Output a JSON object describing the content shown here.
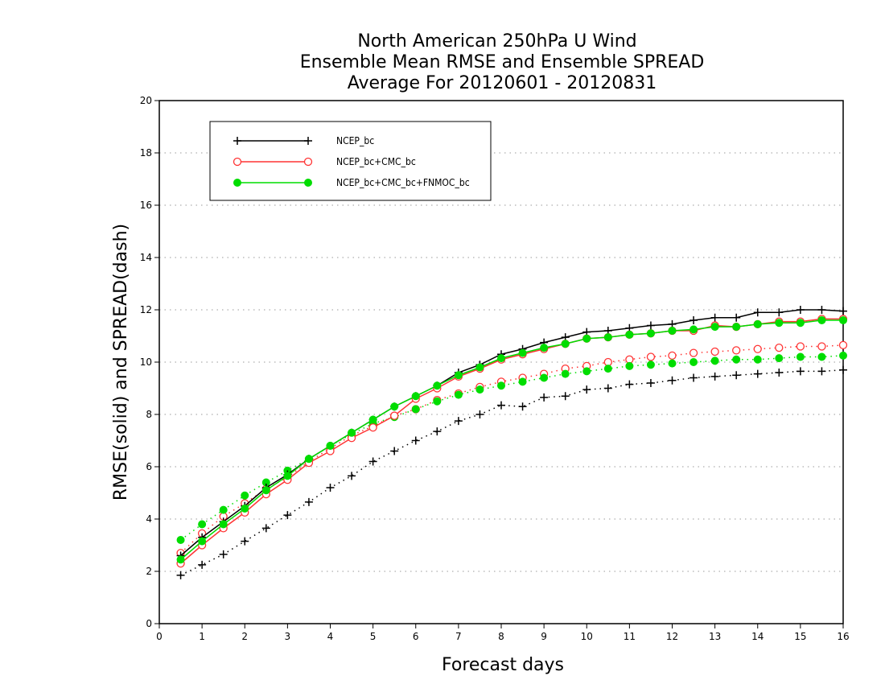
{
  "chart_data": {
    "type": "line",
    "title": [
      "North American 250hPa U Wind",
      "Ensemble Mean RMSE and Ensemble SPREAD",
      "Average For 20120601 - 20120831"
    ],
    "xlabel": "Forecast days",
    "ylabel": "RMSE(solid) and SPREAD(dash)",
    "xlim": [
      0,
      16
    ],
    "ylim": [
      0,
      20
    ],
    "x_ticks": [
      "0",
      "1",
      "2",
      "3",
      "4",
      "5",
      "6",
      "7",
      "8",
      "9",
      "10",
      "11",
      "12",
      "13",
      "14",
      "15",
      "16"
    ],
    "y_ticks": [
      "0",
      "2",
      "4",
      "6",
      "8",
      "10",
      "12",
      "14",
      "16",
      "18",
      "20"
    ],
    "grid": "horizontal dotted",
    "legend_position": "top-left",
    "x": [
      0.5,
      1,
      1.5,
      2,
      2.5,
      3,
      3.5,
      4,
      4.5,
      5,
      5.5,
      6,
      6.5,
      7,
      7.5,
      8,
      8.5,
      9,
      9.5,
      10,
      10.5,
      11,
      11.5,
      12,
      12.5,
      13,
      13.5,
      14,
      14.5,
      15,
      15.5,
      16
    ],
    "series": [
      {
        "name": "NCEP_bc",
        "color": "#000000",
        "marker": "plus",
        "rmse": [
          2.6,
          3.3,
          3.9,
          4.5,
          5.2,
          5.7,
          6.3,
          6.8,
          7.3,
          7.8,
          8.3,
          8.7,
          9.1,
          9.6,
          9.9,
          10.3,
          10.5,
          10.75,
          10.95,
          11.15,
          11.2,
          11.3,
          11.4,
          11.45,
          11.6,
          11.7,
          11.7,
          11.9,
          11.9,
          12.0,
          12.0,
          11.95
        ],
        "spread": [
          1.85,
          2.25,
          2.65,
          3.15,
          3.65,
          4.15,
          4.65,
          5.2,
          5.65,
          6.2,
          6.6,
          7.0,
          7.35,
          7.75,
          8.0,
          8.35,
          8.3,
          8.65,
          8.7,
          8.95,
          9.0,
          9.15,
          9.2,
          9.3,
          9.4,
          9.45,
          9.5,
          9.55,
          9.6,
          9.65,
          9.65,
          9.7
        ]
      },
      {
        "name": "NCEP_bc+CMC_bc",
        "color": "#ff3333",
        "marker": "open-circle",
        "rmse": [
          2.3,
          3.0,
          3.65,
          4.25,
          4.95,
          5.5,
          6.15,
          6.6,
          7.1,
          7.5,
          7.95,
          8.6,
          9.0,
          9.45,
          9.75,
          10.1,
          10.3,
          10.5,
          10.7,
          10.9,
          10.95,
          11.05,
          11.1,
          11.2,
          11.2,
          11.4,
          11.35,
          11.45,
          11.55,
          11.55,
          11.65,
          11.65
        ],
        "spread": [
          2.7,
          3.45,
          4.1,
          4.6,
          5.15,
          5.6,
          6.2,
          6.7,
          7.2,
          7.55,
          7.95,
          8.2,
          8.55,
          8.8,
          9.05,
          9.25,
          9.4,
          9.55,
          9.75,
          9.85,
          10.0,
          10.1,
          10.2,
          10.25,
          10.35,
          10.4,
          10.45,
          10.5,
          10.55,
          10.6,
          10.6,
          10.65
        ]
      },
      {
        "name": "NCEP_bc+CMC_bc+FNMOC_bc",
        "color": "#00dd00",
        "marker": "filled-circle",
        "rmse": [
          2.45,
          3.15,
          3.8,
          4.4,
          5.1,
          5.65,
          6.3,
          6.8,
          7.3,
          7.8,
          8.3,
          8.7,
          9.1,
          9.5,
          9.8,
          10.15,
          10.35,
          10.55,
          10.7,
          10.9,
          10.95,
          11.05,
          11.1,
          11.2,
          11.25,
          11.35,
          11.35,
          11.45,
          11.5,
          11.5,
          11.6,
          11.6
        ],
        "spread": [
          3.2,
          3.8,
          4.35,
          4.9,
          5.4,
          5.85,
          6.3,
          6.8,
          7.25,
          7.65,
          7.9,
          8.2,
          8.5,
          8.75,
          8.95,
          9.1,
          9.25,
          9.4,
          9.55,
          9.65,
          9.75,
          9.85,
          9.9,
          9.95,
          10.0,
          10.05,
          10.1,
          10.1,
          10.15,
          10.2,
          10.2,
          10.25
        ]
      }
    ]
  }
}
